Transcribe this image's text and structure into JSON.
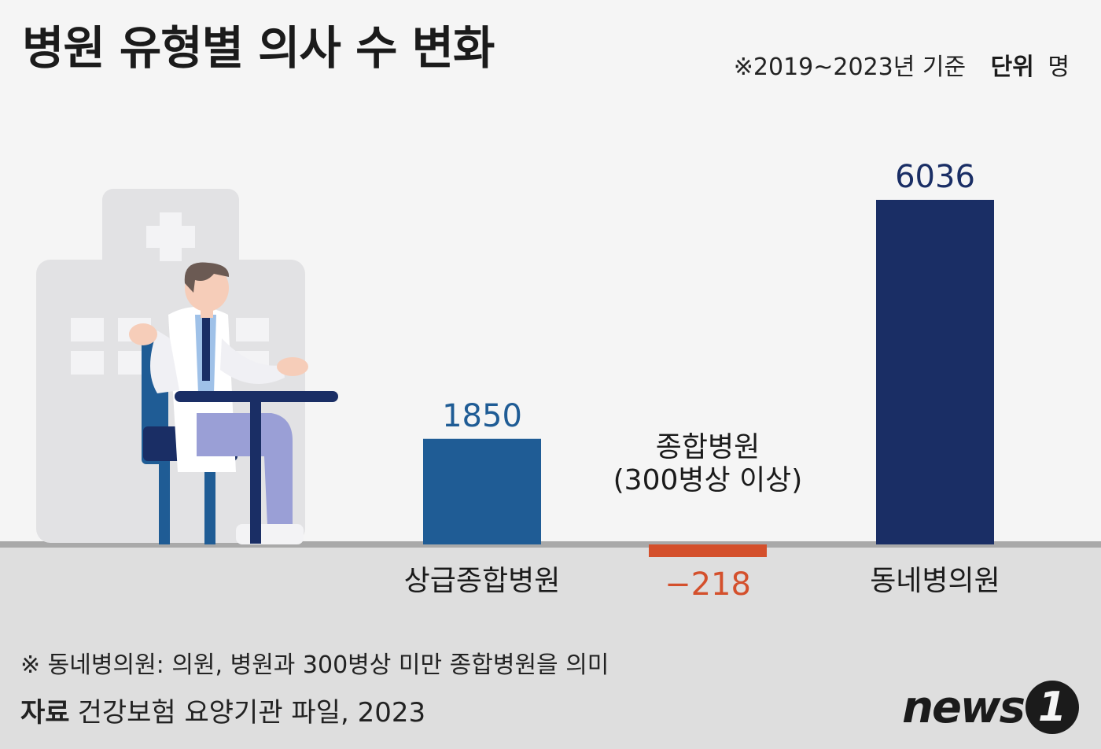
{
  "header": {
    "title": "병원 유형별 의사 수 변화",
    "basis": "※2019~2023년 기준",
    "unit_label": "단위",
    "unit_value": "명"
  },
  "chart_data": {
    "type": "bar",
    "title": "병원 유형별 의사 수 변화",
    "categories": [
      "상급종합병원",
      "종합병원\n(300병상 이상)",
      "동네병의원"
    ],
    "values": [
      1850,
      -218,
      6036
    ],
    "value_labels": [
      "1850",
      "−218",
      "6036"
    ],
    "colors": [
      "#1f5c95",
      "#d4502c",
      "#1a2e65"
    ],
    "label_colors": [
      "#1f5c95",
      "#d4502c",
      "#1a2e65"
    ],
    "grid": false,
    "legend": "none"
  },
  "footer": {
    "note": "※ 동네병의원: 의원, 병원과 300병상 미만 종합병원을 의미",
    "source_label": "자료",
    "source_text": "건강보험 요양기관 파일, 2023",
    "logo_text": "news",
    "logo_badge": "1"
  }
}
